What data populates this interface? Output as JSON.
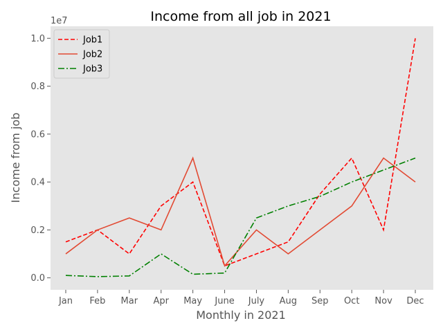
{
  "chart_data": {
    "type": "line",
    "title": "Income from all job in 2021",
    "xlabel": "Monthly in 2021",
    "ylabel": "Income from job",
    "y_offset_label": "1e7",
    "categories": [
      "Jan",
      "Feb",
      "Mar",
      "Apr",
      "May",
      "June",
      "July",
      "Aug",
      "Sep",
      "Oct",
      "Nov",
      "Dec"
    ],
    "y_ticks": [
      0.0,
      0.2,
      0.4,
      0.6,
      0.8,
      1.0
    ],
    "y_tick_labels": [
      "0.0",
      "0.2",
      "0.4",
      "0.6",
      "0.8",
      "1.0"
    ],
    "y_scale": 10000000,
    "ylim": [
      -0.05,
      1.05
    ],
    "grid": false,
    "legend_position": "top-left",
    "background": "#e5e5e5",
    "series": [
      {
        "name": "Job1",
        "color": "#ff0000",
        "line_style": "dashed",
        "values": [
          1500000,
          2000000,
          1000000,
          3000000,
          4000000,
          500000,
          1000000,
          1500000,
          3500000,
          5000000,
          2000000,
          10000000
        ]
      },
      {
        "name": "Job2",
        "color": "#e24a33",
        "line_style": "solid",
        "values": [
          1000000,
          2000000,
          2500000,
          2000000,
          5000000,
          500000,
          2000000,
          1000000,
          2000000,
          3000000,
          5000000,
          4000000
        ]
      },
      {
        "name": "Job3",
        "color": "#008000",
        "line_style": "dashdot",
        "values": [
          100000,
          50000,
          80000,
          1000000,
          150000,
          200000,
          2500000,
          3000000,
          3400000,
          4000000,
          4500000,
          5000000
        ]
      }
    ]
  }
}
